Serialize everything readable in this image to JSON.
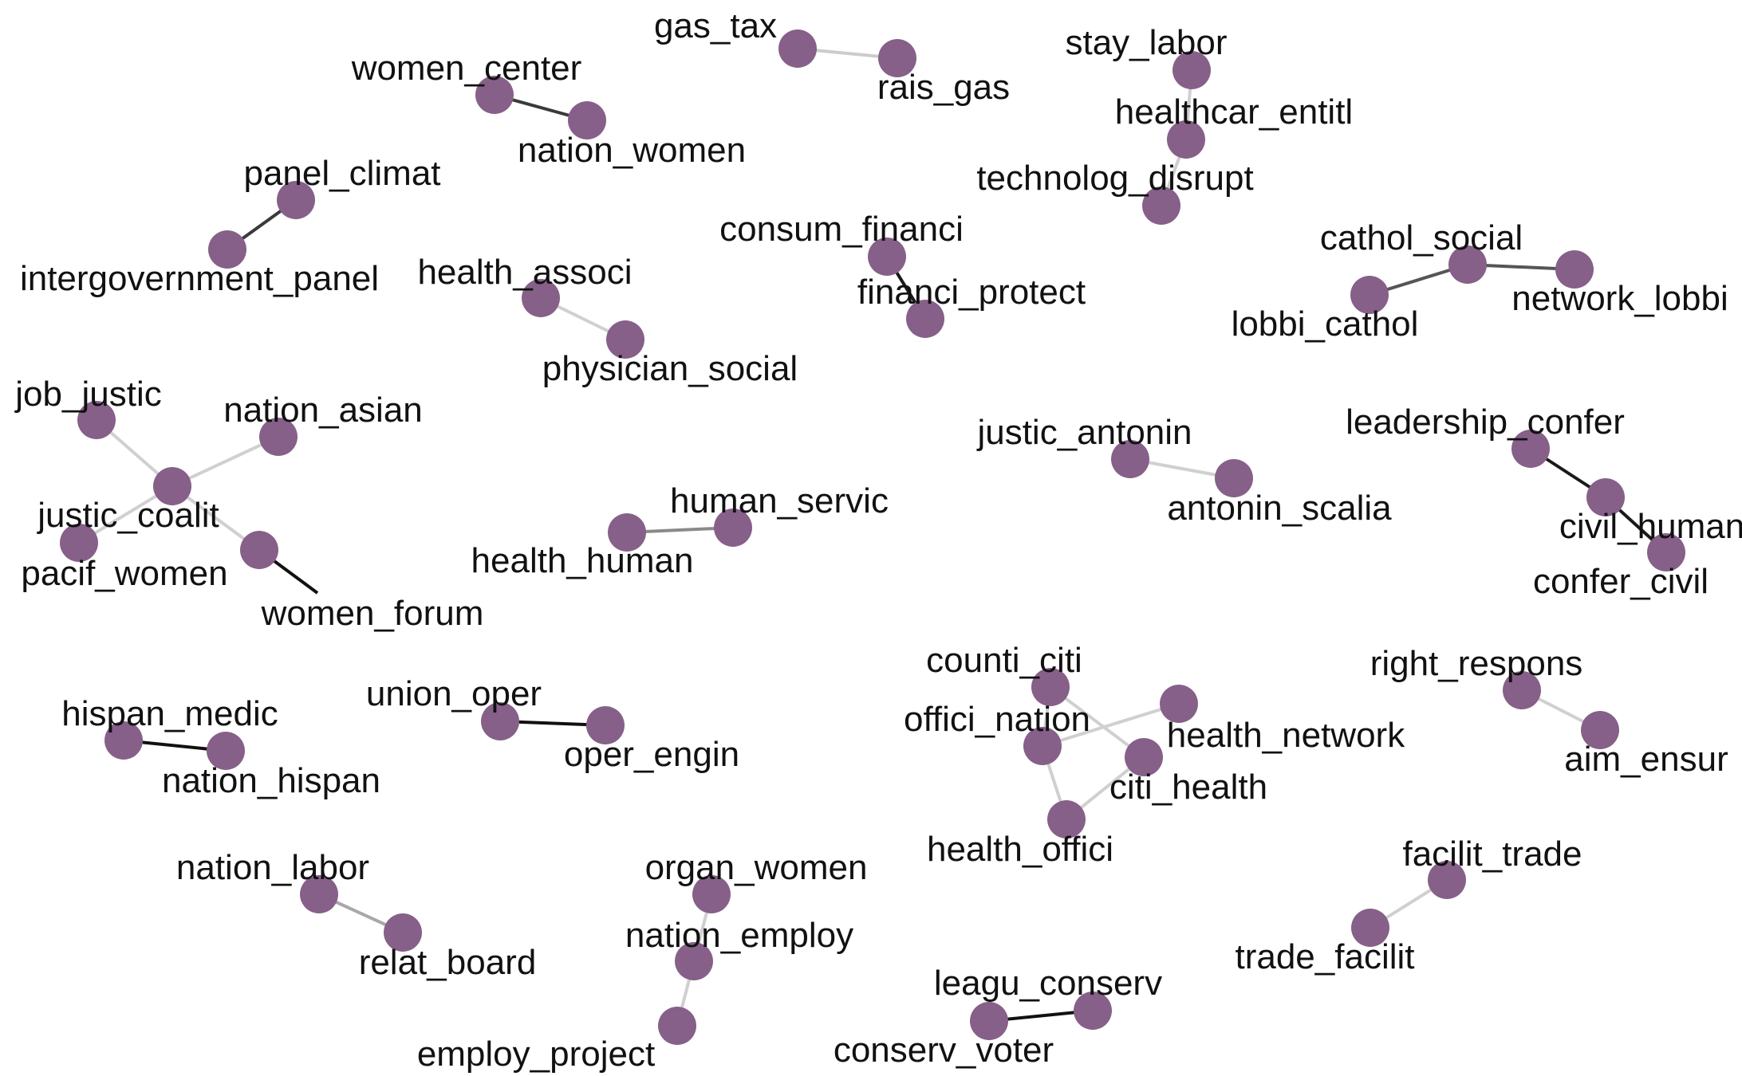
{
  "graph": {
    "node_color": "#866089",
    "label_color": "#111111",
    "nodes": [
      {
        "id": "gas_tax",
        "label": "gas_tax"
      },
      {
        "id": "rais_gas",
        "label": "rais_gas"
      },
      {
        "id": "women_center",
        "label": "women_center"
      },
      {
        "id": "nation_women",
        "label": "nation_women"
      },
      {
        "id": "stay_labor",
        "label": "stay_labor"
      },
      {
        "id": "healthcar_entitl",
        "label": "healthcar_entitl"
      },
      {
        "id": "technolog_disrupt",
        "label": "technolog_disrupt"
      },
      {
        "id": "panel_climat",
        "label": "panel_climat"
      },
      {
        "id": "intergovernment_panel",
        "label": "intergovernment_panel"
      },
      {
        "id": "consum_financi",
        "label": "consum_financi"
      },
      {
        "id": "financi_protect",
        "label": "financi_protect"
      },
      {
        "id": "cathol_social",
        "label": "cathol_social"
      },
      {
        "id": "lobbi_cathol",
        "label": "lobbi_cathol"
      },
      {
        "id": "network_lobbi",
        "label": "network_lobbi"
      },
      {
        "id": "health_associ",
        "label": "health_associ"
      },
      {
        "id": "physician_social",
        "label": "physician_social"
      },
      {
        "id": "job_justic",
        "label": "job_justic"
      },
      {
        "id": "nation_asian",
        "label": "nation_asian"
      },
      {
        "id": "justic_coalit",
        "label": "justic_coalit"
      },
      {
        "id": "pacif_women",
        "label": "pacif_women"
      },
      {
        "id": "women_forum",
        "label": "women_forum"
      },
      {
        "id": "justic_antonin",
        "label": "justic_antonin"
      },
      {
        "id": "antonin_scalia",
        "label": "antonin_scalia"
      },
      {
        "id": "leadership_confer",
        "label": "leadership_confer"
      },
      {
        "id": "civil_human",
        "label": "civil_human"
      },
      {
        "id": "confer_civil",
        "label": "confer_civil"
      },
      {
        "id": "human_servic",
        "label": "human_servic"
      },
      {
        "id": "health_human",
        "label": "health_human"
      },
      {
        "id": "counti_citi",
        "label": "counti_citi"
      },
      {
        "id": "offici_nation",
        "label": "offici_nation"
      },
      {
        "id": "health_network",
        "label": "health_network"
      },
      {
        "id": "citi_health",
        "label": "citi_health"
      },
      {
        "id": "health_offici",
        "label": "health_offici"
      },
      {
        "id": "right_respons",
        "label": "right_respons"
      },
      {
        "id": "aim_ensur",
        "label": "aim_ensur"
      },
      {
        "id": "hispan_medic",
        "label": "hispan_medic"
      },
      {
        "id": "nation_hispan",
        "label": "nation_hispan"
      },
      {
        "id": "union_oper",
        "label": "union_oper"
      },
      {
        "id": "oper_engin",
        "label": "oper_engin"
      },
      {
        "id": "nation_labor",
        "label": "nation_labor"
      },
      {
        "id": "relat_board",
        "label": "relat_board"
      },
      {
        "id": "organ_women",
        "label": "organ_women"
      },
      {
        "id": "nation_employ",
        "label": "nation_employ"
      },
      {
        "id": "employ_project",
        "label": "employ_project"
      },
      {
        "id": "facilit_trade",
        "label": "facilit_trade"
      },
      {
        "id": "trade_facilit",
        "label": "trade_facilit"
      },
      {
        "id": "leagu_conserv",
        "label": "leagu_conserv"
      },
      {
        "id": "conserv_voter",
        "label": "conserv_voter"
      }
    ],
    "edges": [
      {
        "source": "gas_tax",
        "target": "rais_gas",
        "color": "#cccccc"
      },
      {
        "source": "women_center",
        "target": "nation_women",
        "color": "#3a3a3a"
      },
      {
        "source": "stay_labor",
        "target": "healthcar_entitl",
        "color": "#d0d0d0"
      },
      {
        "source": "healthcar_entitl",
        "target": "technolog_disrupt",
        "color": "#d0d0d0"
      },
      {
        "source": "panel_climat",
        "target": "intergovernment_panel",
        "color": "#3a3a3a"
      },
      {
        "source": "consum_financi",
        "target": "financi_protect",
        "color": "#1a1a1a"
      },
      {
        "source": "lobbi_cathol",
        "target": "cathol_social",
        "color": "#555555"
      },
      {
        "source": "cathol_social",
        "target": "network_lobbi",
        "color": "#555555"
      },
      {
        "source": "health_associ",
        "target": "physician_social",
        "color": "#d0d0d0"
      },
      {
        "source": "job_justic",
        "target": "justic_coalit",
        "color": "#d0d0d0"
      },
      {
        "source": "nation_asian",
        "target": "justic_coalit",
        "color": "#d0d0d0"
      },
      {
        "source": "justic_coalit",
        "target": "pacif_women",
        "color": "#d0d0d0"
      },
      {
        "source": "justic_coalit",
        "target": "women_forum",
        "color": "#d0d0d0"
      },
      {
        "source": "justic_antonin",
        "target": "antonin_scalia",
        "color": "#d0d0d0"
      },
      {
        "source": "leadership_confer",
        "target": "civil_human",
        "color": "#1a1a1a"
      },
      {
        "source": "civil_human",
        "target": "confer_civil",
        "color": "#1a1a1a"
      },
      {
        "source": "health_human",
        "target": "human_servic",
        "color": "#8a8a8a"
      },
      {
        "source": "counti_citi",
        "target": "offici_nation",
        "color": "#d0d0d0"
      },
      {
        "source": "counti_citi",
        "target": "citi_health",
        "color": "#d0d0d0"
      },
      {
        "source": "offici_nation",
        "target": "health_network",
        "color": "#d0d0d0"
      },
      {
        "source": "offici_nation",
        "target": "health_offici",
        "color": "#d0d0d0"
      },
      {
        "source": "health_offici",
        "target": "citi_health",
        "color": "#d0d0d0"
      },
      {
        "source": "right_respons",
        "target": "aim_ensur",
        "color": "#d0d0d0"
      },
      {
        "source": "hispan_medic",
        "target": "nation_hispan",
        "color": "#111111"
      },
      {
        "source": "union_oper",
        "target": "oper_engin",
        "color": "#111111"
      },
      {
        "source": "nation_labor",
        "target": "relat_board",
        "color": "#a8a8a8"
      },
      {
        "source": "organ_women",
        "target": "nation_employ",
        "color": "#d0d0d0"
      },
      {
        "source": "nation_employ",
        "target": "employ_project",
        "color": "#d0d0d0"
      },
      {
        "source": "facilit_trade",
        "target": "trade_facilit",
        "color": "#d0d0d0"
      },
      {
        "source": "leagu_conserv",
        "target": "conserv_voter",
        "color": "#111111"
      }
    ]
  }
}
